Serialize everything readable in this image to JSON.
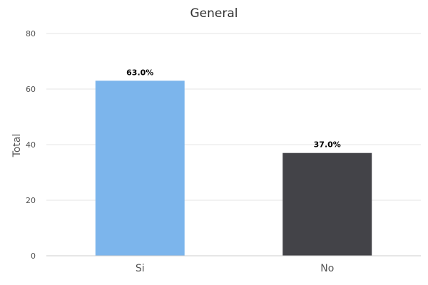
{
  "chart_data": {
    "type": "bar",
    "title": "General",
    "xlabel": "",
    "ylabel": "Total",
    "categories": [
      "Si",
      "No"
    ],
    "values": [
      63.0,
      37.0
    ],
    "data_labels": [
      "63.0%",
      "37.0%"
    ],
    "colors": [
      "#7cb5ec",
      "#434348"
    ],
    "ylim": [
      0,
      80
    ],
    "yticks": [
      0,
      20,
      40,
      60,
      80
    ],
    "ytick_labels": [
      "0",
      "20",
      "40",
      "60",
      "80"
    ],
    "grid": true,
    "legend": "none"
  }
}
